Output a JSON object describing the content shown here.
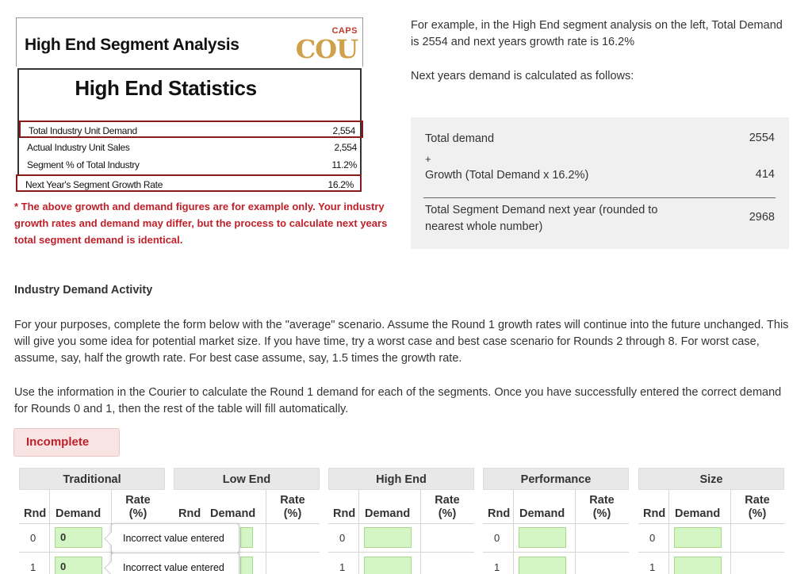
{
  "segment_panel": {
    "header_title": "High End Segment Analysis",
    "logo_caps": "CAPS",
    "logo_cou": "COU",
    "stats_title": "High End Statistics",
    "rows": [
      {
        "label": "Total Industry Unit Demand",
        "value": "2,554"
      },
      {
        "label": "Actual Industry Unit Sales",
        "value": "2,554"
      },
      {
        "label": "Segment % of Total Industry",
        "value": "11.2%"
      },
      {
        "label": "Next Year's Segment Growth Rate",
        "value": "16.2%"
      }
    ]
  },
  "note": "* The above growth and demand figures are for example only. Your industry growth rates and demand may differ, but the process to calculate next years total segment demand is identical.",
  "explanation": {
    "intro": "For example, in the High End segment analysis on the left, Total Demand is 2554 and next years growth rate is 16.2%",
    "calc_intro": "Next years demand is calculated as follows:",
    "total_label": "Total demand",
    "total_value": "2554",
    "plus": "+",
    "growth_label": "Growth (Total Demand x 16.2%)",
    "growth_value": "414",
    "result_label": "Total Segment Demand next year (rounded to nearest whole number)",
    "result_value": "2968"
  },
  "activity": {
    "title": "Industry Demand Activity",
    "para1": "For your purposes, complete the form below with the \"average\" scenario. Assume the Round 1 growth rates will continue into the future unchanged. This will give you some idea for potential market size. If you have time, try a worst case and best case scenario for Rounds 2 through 8. For worst case, assume, say, half the growth rate. For best case assume, say, 1.5 times the growth rate.",
    "para2": "Use the information in the Courier to calculate the Round 1 demand for each of the segments. Once you have successfully entered the correct demand for Rounds 0 and 1, then the rest of the table will fill automatically.",
    "status": "Incomplete"
  },
  "tables": {
    "columns": {
      "rnd": "Rnd",
      "demand": "Demand",
      "rate_line1": "Rate",
      "rate_line2": "(%)"
    },
    "tooltip": "Incorrect value entered",
    "segments": [
      {
        "name": "Traditional",
        "rows": [
          {
            "rnd": "0",
            "demand": "0"
          },
          {
            "rnd": "1",
            "demand": "0"
          }
        ]
      },
      {
        "name": "Low End",
        "rows": [
          {
            "rnd": "",
            "demand": ""
          },
          {
            "rnd": "",
            "demand": ""
          }
        ]
      },
      {
        "name": "High End",
        "rows": [
          {
            "rnd": "0",
            "demand": ""
          },
          {
            "rnd": "1",
            "demand": ""
          }
        ]
      },
      {
        "name": "Performance",
        "rows": [
          {
            "rnd": "0",
            "demand": ""
          },
          {
            "rnd": "1",
            "demand": ""
          }
        ]
      },
      {
        "name": "Size",
        "rows": [
          {
            "rnd": "0",
            "demand": ""
          },
          {
            "rnd": "1",
            "demand": ""
          }
        ]
      }
    ]
  }
}
